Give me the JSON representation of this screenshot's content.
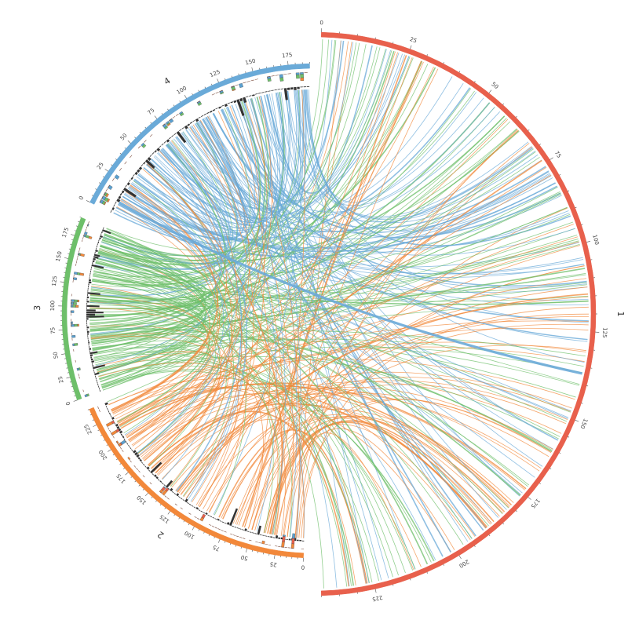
{
  "diagram": {
    "type": "circos",
    "chromosomes": [
      {
        "name": "1",
        "length": 240,
        "color": "#e8604c",
        "ticks": [
          "0",
          "25",
          "50",
          "75",
          "100",
          "125",
          "150",
          "175",
          "200",
          "225"
        ]
      },
      {
        "name": "2",
        "length": 240,
        "color": "#f2883a",
        "ticks": [
          "0",
          "25",
          "50",
          "75",
          "100",
          "125",
          "150",
          "175",
          "200",
          "225"
        ]
      },
      {
        "name": "3",
        "length": 195,
        "color": "#6ebf6a",
        "ticks": [
          "0",
          "25",
          "50",
          "75",
          "100",
          "125",
          "150",
          "175"
        ]
      },
      {
        "name": "4",
        "length": 190,
        "color": "#6aaad8",
        "ticks": [
          "0",
          "25",
          "50",
          "75",
          "100",
          "125",
          "150",
          "175"
        ]
      }
    ],
    "histogram_series_colors": [
      "#5aa0d0",
      "#6ebf6a",
      "#f2883a",
      "#e8604c"
    ],
    "inner_bar_color": "#333333",
    "link_colors": {
      "2": "#f2883a",
      "3": "#6ebf6a",
      "4": "#6aaad8"
    }
  }
}
